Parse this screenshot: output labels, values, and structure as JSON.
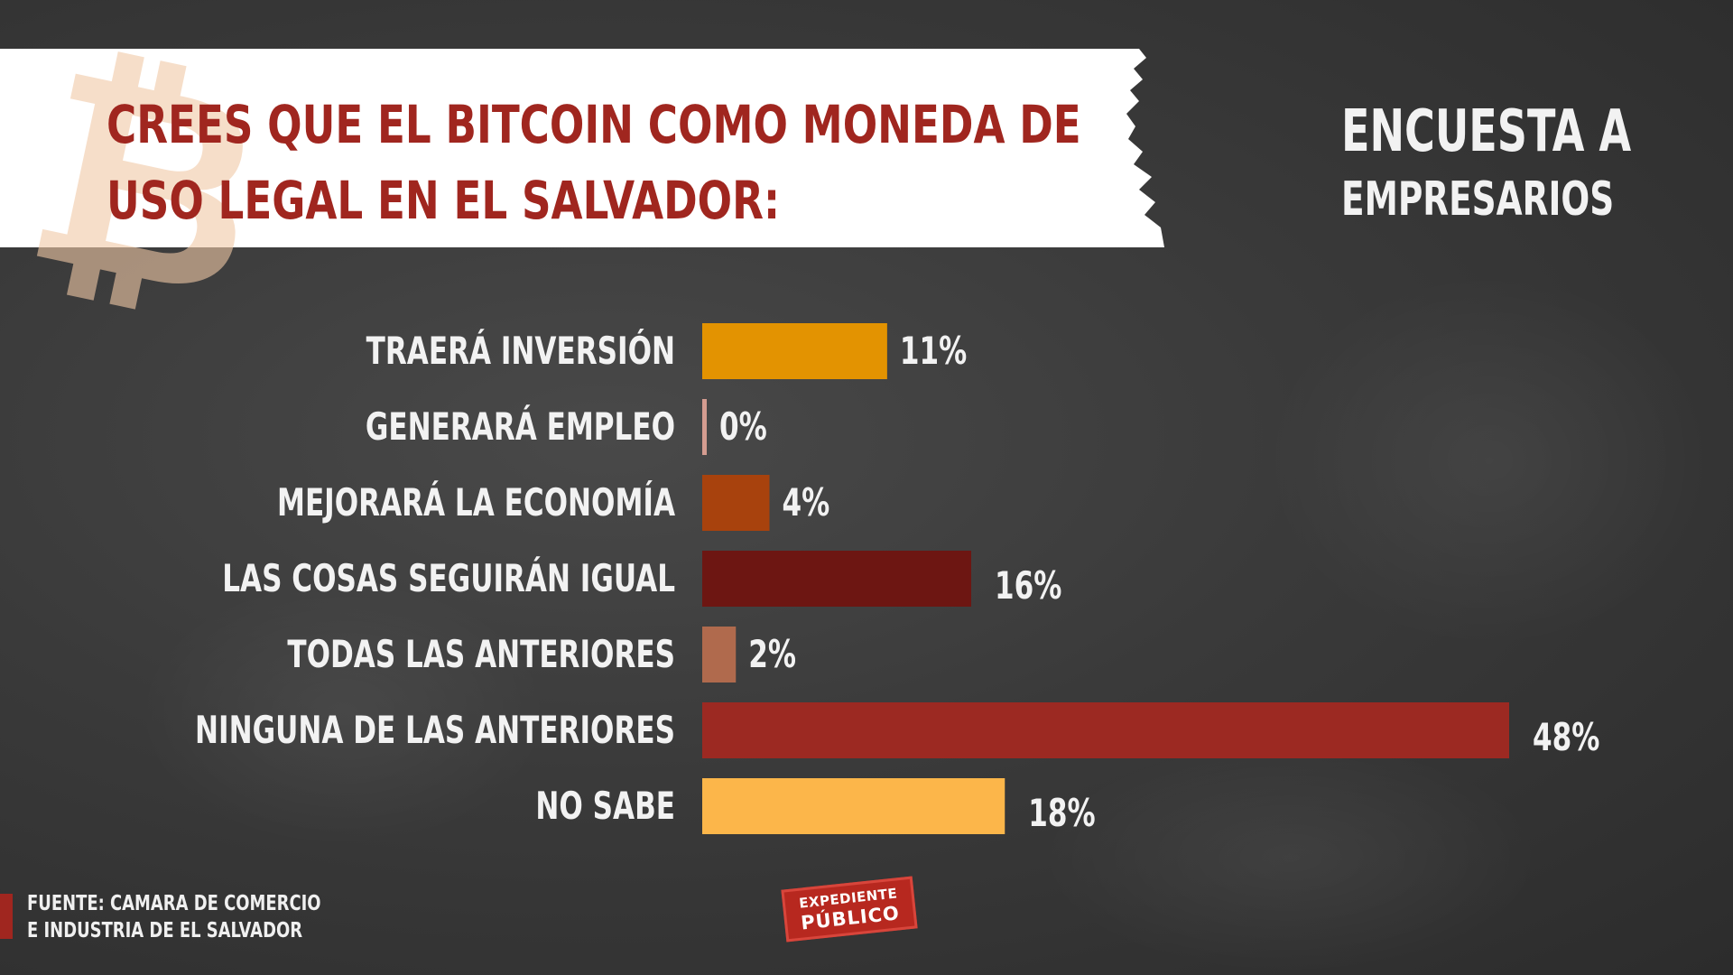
{
  "title": {
    "line1": "Crees que el Bitcoin como moneda de",
    "line2": "uso legal en El Salvador:"
  },
  "subtitle": {
    "line1": "ENCUESTA A",
    "line2": "EMPRESARIOS"
  },
  "source": {
    "line1": "FUENTE: CAMARA DE COMERCIO",
    "line2": "E INDUSTRIA DE EL SALVADOR"
  },
  "logo": {
    "line1": "EXPEDIENTE",
    "line2": "PÚBLICO"
  },
  "colors": {
    "title": "#a0261f",
    "text": "#f2f2f2",
    "background": "#3a3a3a"
  },
  "chart_data": {
    "type": "bar",
    "orientation": "horizontal",
    "title": "Crees que el Bitcoin como moneda de uso legal en El Salvador:",
    "subtitle": "ENCUESTA A EMPRESARIOS",
    "xlim": [
      0,
      48
    ],
    "grid": false,
    "categories": [
      "TRAERÁ INVERSIÓN",
      "GENERARÁ EMPLEO",
      "MEJORARÁ LA ECONOMÍA",
      "LAS COSAS SEGUIRÁN IGUAL",
      "TODAS LAS ANTERIORES",
      "NINGUNA DE LAS ANTERIORES",
      "NO SABE"
    ],
    "values": [
      11,
      0,
      4,
      16,
      2,
      48,
      18
    ],
    "value_labels": [
      "11%",
      "0%",
      "4%",
      "16%",
      "2%",
      "48%",
      "18%"
    ],
    "bar_colors": [
      "#e39301",
      "#d49c90",
      "#a8420d",
      "#6d1612",
      "#b06a4d",
      "#9c2922",
      "#fcb64a"
    ]
  }
}
